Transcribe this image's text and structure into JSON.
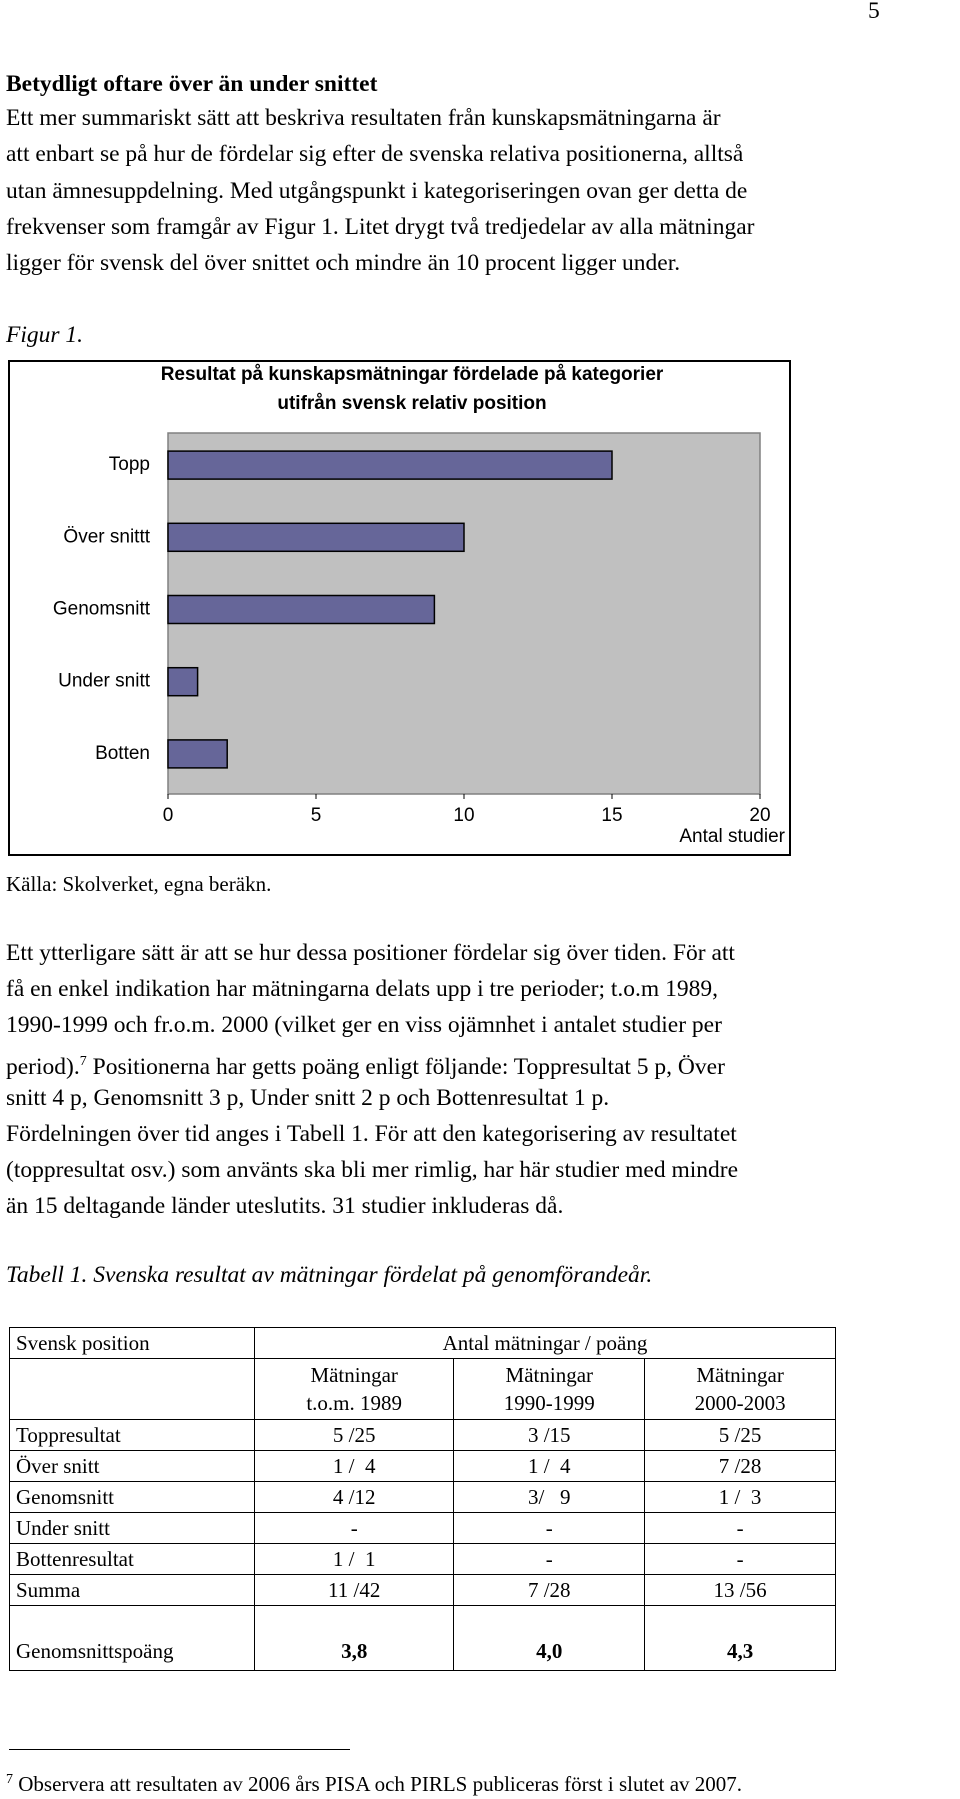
{
  "page_number": "5",
  "heading": "Betydligt oftare över än under snittet",
  "paragraph_1": [
    "Ett mer summariskt sätt att beskriva resultaten från kunskapsmätningarna är",
    "att enbart se på hur de fördelar sig efter de svenska relativa positionerna, alltså",
    "utan ämnesuppdelning. Med utgångspunkt i kategoriseringen ovan ger detta de",
    "frekvenser som framgår av Figur 1. Litet drygt två tredjedelar av alla mätningar",
    "ligger för svensk del över snittet och mindre än 10 procent ligger under."
  ],
  "figure_caption": "Figur 1.",
  "chart_data": {
    "type": "bar",
    "orientation": "horizontal",
    "title": [
      "Resultat på kunskapsmätningar fördelade på kategorier",
      "utifrån svensk relativ position"
    ],
    "categories": [
      "Topp",
      "Över snittt",
      "Genomsnitt",
      "Under snitt",
      "Botten"
    ],
    "values": [
      15,
      10,
      9,
      1,
      2
    ],
    "color": "#666699",
    "plot_background": "#c0c0c0",
    "xlim": [
      0,
      20
    ],
    "xticks": [
      0,
      5,
      10,
      15,
      20
    ],
    "x_label": "Antal studier",
    "grid": false
  },
  "source": "Källa: Skolverket, egna beräkn.",
  "paragraph_2": {
    "lines_before": [
      "Ett ytterligare sätt är att se hur dessa positioner fördelar sig över tiden. För att",
      "få en enkel indikation har mätningarna delats upp i tre perioder; t.o.m 1989,",
      "1990-1999 och fr.o.m. 2000 (vilket ger en viss ojämnhet i antalet studier per"
    ],
    "line_start": "period).",
    "note_ref": "7",
    "line_end": " Positionerna har getts poäng enligt följande: Toppresultat 5 p, Över",
    "lines_after": [
      "snitt 4 p, Genomsnitt 3 p, Under snitt 2 p och Bottenresultat 1 p.",
      "Fördelningen över tid anges i Tabell 1. För att den kategorisering av resultatet",
      "(toppresultat osv.) som använts ska bli mer rimlig, har här studier med mindre",
      "än 15 deltagande länder uteslutits. 31 studier inkluderas då."
    ]
  },
  "table_caption": "Tabell 1. Svenska resultat av mätningar fördelat på genomförandeår.",
  "table": {
    "header": [
      "Svensk position",
      "Antal mätningar / poäng"
    ],
    "subheader": [
      [
        "Mätningar",
        "t.o.m. 1989"
      ],
      [
        "Mätningar",
        "1990-1999"
      ],
      [
        "Mätningar",
        "2000-2003"
      ]
    ],
    "rows": [
      [
        "Toppresultat",
        "5 /25",
        "3 /15",
        "5 /25"
      ],
      [
        "Över snitt",
        "1 /  4",
        "1 /  4",
        "7 /28"
      ],
      [
        "Genomsnitt",
        "4 /12",
        "3/   9",
        "1 /  3"
      ],
      [
        "Under snitt",
        "-",
        "-",
        "-"
      ],
      [
        "Bottenresultat",
        "1 /  1",
        "-",
        "-"
      ],
      [
        "Summa",
        "11 /42",
        "7 /28",
        "13 /56"
      ],
      [
        "Genomsnittspoäng",
        "3,8",
        "4,0",
        "4,3"
      ]
    ]
  },
  "footnote": {
    "number": "7",
    "text": "Observera att resultaten av 2006 års PISA och PIRLS publiceras först i slutet av 2007."
  }
}
